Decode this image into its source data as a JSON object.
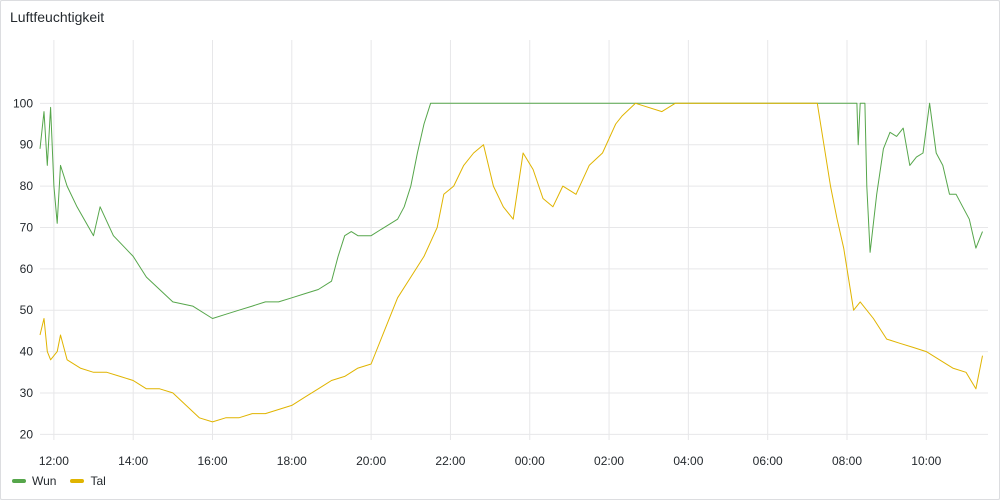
{
  "panel": {
    "title": "Luftfeuchtigkeit"
  },
  "chart_data": {
    "type": "line",
    "title": "Luftfeuchtigkeit",
    "xlabel": "",
    "ylabel": "",
    "ylim": [
      15,
      105
    ],
    "yticks": [
      20,
      30,
      40,
      50,
      60,
      70,
      80,
      90,
      100
    ],
    "xticks": [
      "12:00",
      "14:00",
      "16:00",
      "18:00",
      "20:00",
      "22:00",
      "00:00",
      "02:00",
      "04:00",
      "06:00",
      "08:00",
      "10:00"
    ],
    "grid": true,
    "legend": "bottom-left",
    "series": [
      {
        "name": "Wun",
        "color": "#56a64b",
        "points": [
          [
            "11:39",
            89
          ],
          [
            "11:45",
            98
          ],
          [
            "11:50",
            85
          ],
          [
            "11:55",
            99
          ],
          [
            "12:00",
            80
          ],
          [
            "12:05",
            71
          ],
          [
            "12:10",
            85
          ],
          [
            "12:20",
            80
          ],
          [
            "12:35",
            75
          ],
          [
            "13:00",
            68
          ],
          [
            "13:10",
            75
          ],
          [
            "13:30",
            68
          ],
          [
            "14:00",
            63
          ],
          [
            "14:20",
            58
          ],
          [
            "14:40",
            55
          ],
          [
            "15:00",
            52
          ],
          [
            "15:30",
            51
          ],
          [
            "16:00",
            48
          ],
          [
            "16:20",
            49
          ],
          [
            "16:40",
            50
          ],
          [
            "17:00",
            51
          ],
          [
            "17:20",
            52
          ],
          [
            "17:40",
            52
          ],
          [
            "18:00",
            53
          ],
          [
            "18:20",
            54
          ],
          [
            "18:40",
            55
          ],
          [
            "19:00",
            57
          ],
          [
            "19:10",
            63
          ],
          [
            "19:20",
            68
          ],
          [
            "19:30",
            69
          ],
          [
            "19:40",
            68
          ],
          [
            "19:50",
            68
          ],
          [
            "20:00",
            68
          ],
          [
            "20:20",
            70
          ],
          [
            "20:40",
            72
          ],
          [
            "20:50",
            75
          ],
          [
            "21:00",
            80
          ],
          [
            "21:10",
            88
          ],
          [
            "21:20",
            95
          ],
          [
            "21:30",
            100
          ],
          [
            "22:00",
            100
          ],
          [
            "00:00",
            100
          ],
          [
            "02:00",
            100
          ],
          [
            "04:00",
            100
          ],
          [
            "06:00",
            100
          ],
          [
            "08:00",
            100
          ],
          [
            "08:15",
            100
          ],
          [
            "08:17",
            90
          ],
          [
            "08:20",
            100
          ],
          [
            "08:27",
            100
          ],
          [
            "08:30",
            80
          ],
          [
            "08:35",
            64
          ],
          [
            "08:45",
            78
          ],
          [
            "08:55",
            89
          ],
          [
            "09:05",
            93
          ],
          [
            "09:15",
            92
          ],
          [
            "09:25",
            94
          ],
          [
            "09:35",
            85
          ],
          [
            "09:45",
            87
          ],
          [
            "09:55",
            88
          ],
          [
            "10:05",
            100
          ],
          [
            "10:15",
            88
          ],
          [
            "10:25",
            85
          ],
          [
            "10:35",
            78
          ],
          [
            "10:45",
            78
          ],
          [
            "10:55",
            75
          ],
          [
            "11:05",
            72
          ],
          [
            "11:15",
            65
          ],
          [
            "11:25",
            69
          ]
        ]
      },
      {
        "name": "Tal",
        "color": "#e0b400",
        "points": [
          [
            "11:39",
            44
          ],
          [
            "11:45",
            48
          ],
          [
            "11:50",
            40
          ],
          [
            "11:55",
            38
          ],
          [
            "12:05",
            40
          ],
          [
            "12:10",
            44
          ],
          [
            "12:20",
            38
          ],
          [
            "12:40",
            36
          ],
          [
            "13:00",
            35
          ],
          [
            "13:20",
            35
          ],
          [
            "13:40",
            34
          ],
          [
            "14:00",
            33
          ],
          [
            "14:20",
            31
          ],
          [
            "14:40",
            31
          ],
          [
            "15:00",
            30
          ],
          [
            "15:20",
            27
          ],
          [
            "15:40",
            24
          ],
          [
            "16:00",
            23
          ],
          [
            "16:20",
            24
          ],
          [
            "16:40",
            24
          ],
          [
            "17:00",
            25
          ],
          [
            "17:20",
            25
          ],
          [
            "17:40",
            26
          ],
          [
            "18:00",
            27
          ],
          [
            "18:20",
            29
          ],
          [
            "18:40",
            31
          ],
          [
            "19:00",
            33
          ],
          [
            "19:20",
            34
          ],
          [
            "19:40",
            36
          ],
          [
            "20:00",
            37
          ],
          [
            "20:20",
            45
          ],
          [
            "20:40",
            53
          ],
          [
            "21:00",
            58
          ],
          [
            "21:20",
            63
          ],
          [
            "21:40",
            70
          ],
          [
            "21:50",
            78
          ],
          [
            "22:05",
            80
          ],
          [
            "22:20",
            85
          ],
          [
            "22:35",
            88
          ],
          [
            "22:50",
            90
          ],
          [
            "23:05",
            80
          ],
          [
            "23:20",
            75
          ],
          [
            "23:35",
            72
          ],
          [
            "23:50",
            88
          ],
          [
            "00:05",
            84
          ],
          [
            "00:20",
            77
          ],
          [
            "00:35",
            75
          ],
          [
            "00:50",
            80
          ],
          [
            "01:10",
            78
          ],
          [
            "01:30",
            85
          ],
          [
            "01:50",
            88
          ],
          [
            "02:10",
            95
          ],
          [
            "02:20",
            97
          ],
          [
            "02:40",
            100
          ],
          [
            "03:20",
            98
          ],
          [
            "03:40",
            100
          ],
          [
            "04:00",
            100
          ],
          [
            "06:00",
            100
          ],
          [
            "07:15",
            100
          ],
          [
            "07:25",
            90
          ],
          [
            "07:35",
            80
          ],
          [
            "07:45",
            72
          ],
          [
            "07:55",
            65
          ],
          [
            "08:05",
            55
          ],
          [
            "08:10",
            50
          ],
          [
            "08:20",
            52
          ],
          [
            "08:40",
            48
          ],
          [
            "09:00",
            43
          ],
          [
            "09:20",
            42
          ],
          [
            "09:40",
            41
          ],
          [
            "10:00",
            40
          ],
          [
            "10:20",
            38
          ],
          [
            "10:40",
            36
          ],
          [
            "11:00",
            35
          ],
          [
            "11:15",
            31
          ],
          [
            "11:25",
            39
          ]
        ]
      }
    ]
  }
}
